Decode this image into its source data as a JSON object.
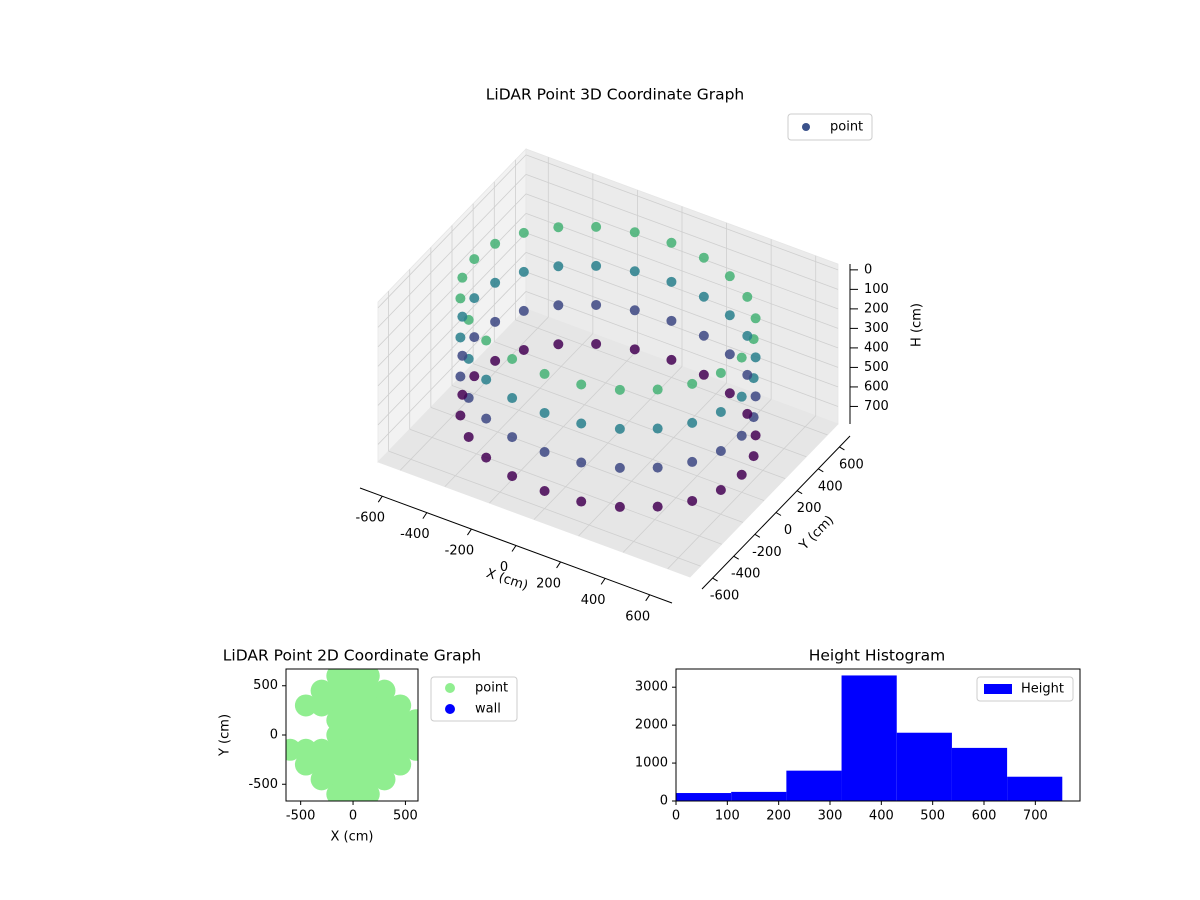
{
  "chart_data": [
    {
      "type": "scatter3d",
      "title": "LiDAR Point 3D Coordinate Graph",
      "xlabel": "X (cm)",
      "ylabel": "Y (cm)",
      "zlabel": "H (cm)",
      "series": [
        {
          "name": "point",
          "x": [
            600,
            580,
            520,
            424,
            300,
            155,
            0,
            -155,
            -300,
            -424,
            -520,
            -580,
            -600,
            -580,
            -520,
            -424,
            -300,
            -155,
            0,
            155,
            300,
            424,
            520,
            580,
            600,
            580,
            520,
            424,
            300,
            155,
            0,
            -155,
            -300,
            -424,
            -520,
            -580,
            -600,
            -580,
            -520,
            -424,
            -300,
            -155,
            0,
            155,
            300,
            424,
            520,
            580,
            600,
            580,
            520,
            424,
            300,
            155,
            0,
            -155,
            -300,
            -424,
            -520,
            -580,
            -600,
            -580,
            -520,
            -424,
            -300,
            -155,
            0,
            155,
            300,
            424,
            520,
            580,
            600,
            580,
            520,
            424,
            300,
            155,
            0,
            -155,
            -300,
            -424,
            -520,
            -580,
            -600,
            -580,
            -520,
            -424,
            -300,
            -155,
            0,
            155,
            300,
            424,
            520,
            580
          ],
          "y": [
            0,
            155,
            300,
            424,
            520,
            580,
            600,
            580,
            520,
            424,
            300,
            155,
            0,
            -155,
            -300,
            -424,
            -520,
            -580,
            -600,
            -580,
            -520,
            -424,
            -300,
            -155,
            0,
            155,
            300,
            424,
            520,
            580,
            600,
            580,
            520,
            424,
            300,
            155,
            0,
            -155,
            -300,
            -424,
            -520,
            -580,
            -600,
            -580,
            -520,
            -424,
            -300,
            -155,
            0,
            155,
            300,
            424,
            520,
            580,
            600,
            580,
            520,
            424,
            300,
            155,
            0,
            -155,
            -300,
            -424,
            -520,
            -580,
            -600,
            -580,
            -520,
            -424,
            -300,
            -155,
            0,
            155,
            300,
            424,
            520,
            580,
            600,
            580,
            520,
            424,
            300,
            155,
            0,
            -155,
            -300,
            -424,
            -520,
            -580,
            -600,
            -580,
            -520,
            -424,
            -300,
            -155
          ],
          "z": [
            100,
            100,
            100,
            100,
            100,
            100,
            100,
            100,
            100,
            100,
            100,
            100,
            100,
            100,
            100,
            100,
            100,
            100,
            100,
            100,
            100,
            100,
            100,
            100,
            300,
            300,
            300,
            300,
            300,
            300,
            300,
            300,
            300,
            300,
            300,
            300,
            300,
            300,
            300,
            300,
            300,
            300,
            300,
            300,
            300,
            300,
            300,
            300,
            500,
            500,
            500,
            500,
            500,
            500,
            500,
            500,
            500,
            500,
            500,
            500,
            500,
            500,
            500,
            500,
            500,
            500,
            500,
            500,
            500,
            500,
            500,
            500,
            700,
            700,
            700,
            700,
            700,
            700,
            700,
            700,
            700,
            700,
            700,
            700,
            700,
            700,
            700,
            700,
            700,
            700,
            700,
            700,
            700,
            700,
            700,
            700
          ]
        }
      ],
      "colormap": [
        "#440154",
        "#3b528b",
        "#21918c",
        "#5ec962"
      ],
      "xlim": [
        -700,
        700
      ],
      "ylim": [
        -700,
        700
      ],
      "zlim": [
        790,
        -30
      ],
      "xticks": [
        -600,
        -400,
        -200,
        0,
        200,
        400,
        600
      ],
      "yticks": [
        -600,
        -400,
        -200,
        0,
        200,
        400,
        600
      ],
      "zticks": [
        0,
        100,
        200,
        300,
        400,
        500,
        600,
        700
      ],
      "grid": true,
      "legend": "upper right"
    },
    {
      "type": "scatter",
      "title": "LiDAR Point 2D Coordinate Graph",
      "xlabel": "X (cm)",
      "ylabel": "Y (cm)",
      "series": [
        {
          "name": "point",
          "color": "#90ee90",
          "x": [
            -150,
            0,
            150,
            -300,
            -150,
            0,
            150,
            300,
            -450,
            -300,
            -150,
            0,
            150,
            300,
            450,
            -150,
            0,
            150,
            300,
            450,
            600,
            -150,
            0,
            150,
            300,
            450,
            600,
            -600,
            -450,
            -300,
            -150,
            0,
            150,
            300,
            450,
            600,
            -450,
            -300,
            -150,
            0,
            150,
            300,
            450,
            -300,
            -150,
            0,
            150,
            300,
            -150,
            0,
            150
          ],
          "y": [
            600,
            600,
            600,
            450,
            450,
            450,
            450,
            450,
            300,
            300,
            300,
            300,
            300,
            300,
            300,
            150,
            150,
            150,
            150,
            150,
            150,
            0,
            0,
            0,
            0,
            0,
            0,
            -150,
            -150,
            -150,
            -150,
            -150,
            -150,
            -150,
            -150,
            -150,
            -300,
            -300,
            -300,
            -300,
            -300,
            -300,
            -300,
            -450,
            -450,
            -450,
            -450,
            -450,
            -600,
            -600,
            -600
          ]
        },
        {
          "name": "wall",
          "color": "#0000ff",
          "x": [],
          "y": []
        }
      ],
      "xlim": [
        -640,
        620
      ],
      "ylim": [
        -670,
        670
      ],
      "xticks": [
        -500,
        0,
        500
      ],
      "yticks": [
        -500,
        0,
        500
      ],
      "legend": "outside right"
    },
    {
      "type": "histogram",
      "title": "Height Histogram",
      "series": [
        {
          "name": "Height",
          "color": "#0000ff",
          "bins": [
            0,
            107.5,
            215,
            322.5,
            430,
            537.5,
            645,
            752.5
          ],
          "counts": [
            210,
            240,
            800,
            3310,
            1800,
            1400,
            640
          ]
        }
      ],
      "xlim": [
        0,
        787
      ],
      "ylim": [
        0,
        3480
      ],
      "xticks": [
        0,
        100,
        200,
        300,
        400,
        500,
        600,
        700
      ],
      "yticks": [
        0,
        1000,
        2000,
        3000
      ],
      "legend": "upper right"
    }
  ]
}
